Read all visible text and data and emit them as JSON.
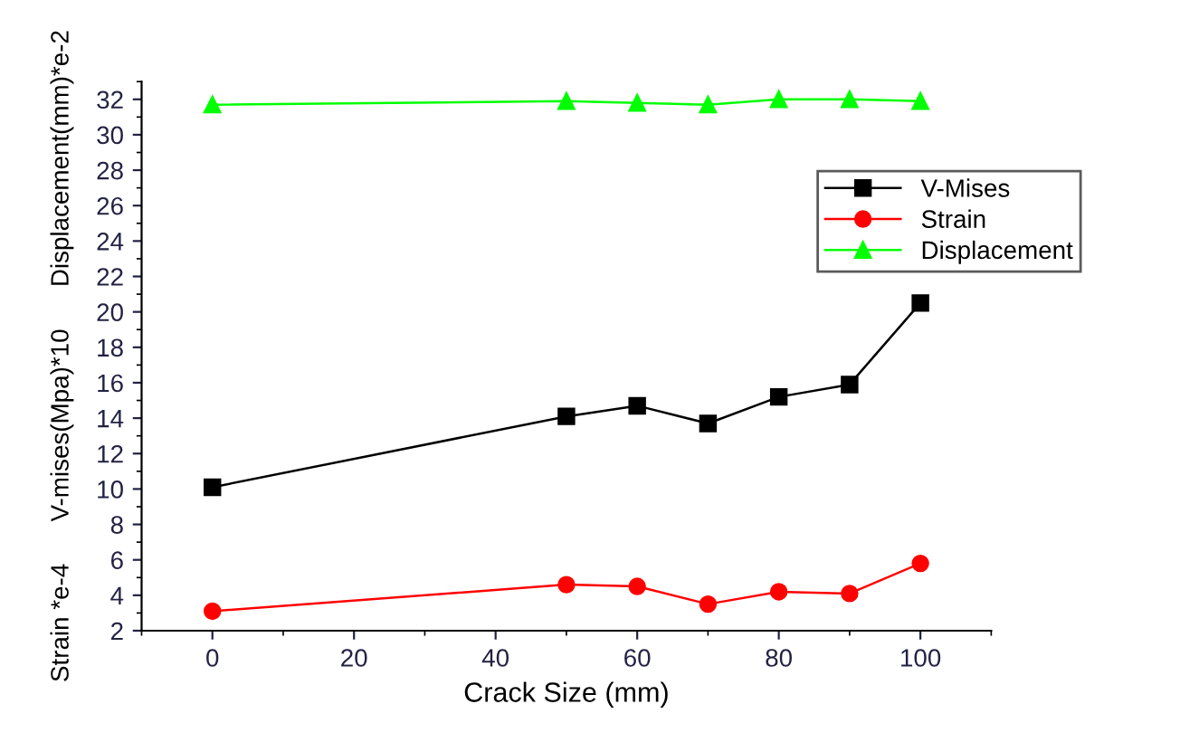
{
  "chart_data": {
    "type": "line",
    "xlabel": "Crack Size (mm)",
    "ylabel": "Strain *e-4      V-mises(Mpa)*10      Displacement(mm)*e-2",
    "x": [
      0,
      50,
      60,
      70,
      80,
      90,
      100
    ],
    "series": [
      {
        "name": "V-Mises",
        "color": "#000000",
        "marker": "square",
        "values": [
          10.1,
          14.1,
          14.7,
          13.7,
          15.2,
          15.9,
          20.5
        ]
      },
      {
        "name": "Strain",
        "color": "#ff0000",
        "marker": "circle",
        "values": [
          3.1,
          4.6,
          4.5,
          3.5,
          4.2,
          4.1,
          5.8
        ]
      },
      {
        "name": "Displacement",
        "color": "#00ff00",
        "marker": "triangle",
        "values": [
          31.7,
          31.9,
          31.8,
          31.7,
          32.0,
          32.0,
          31.9
        ]
      }
    ],
    "xlim": [
      -10,
      110
    ],
    "xticks": [
      0,
      20,
      40,
      60,
      80,
      100
    ],
    "ylim": [
      2,
      33
    ],
    "yticks": [
      2,
      4,
      6,
      8,
      10,
      12,
      14,
      16,
      18,
      20,
      22,
      24,
      26,
      28,
      30,
      32
    ],
    "grid": false,
    "legend": "top right",
    "line_style": "solid"
  }
}
